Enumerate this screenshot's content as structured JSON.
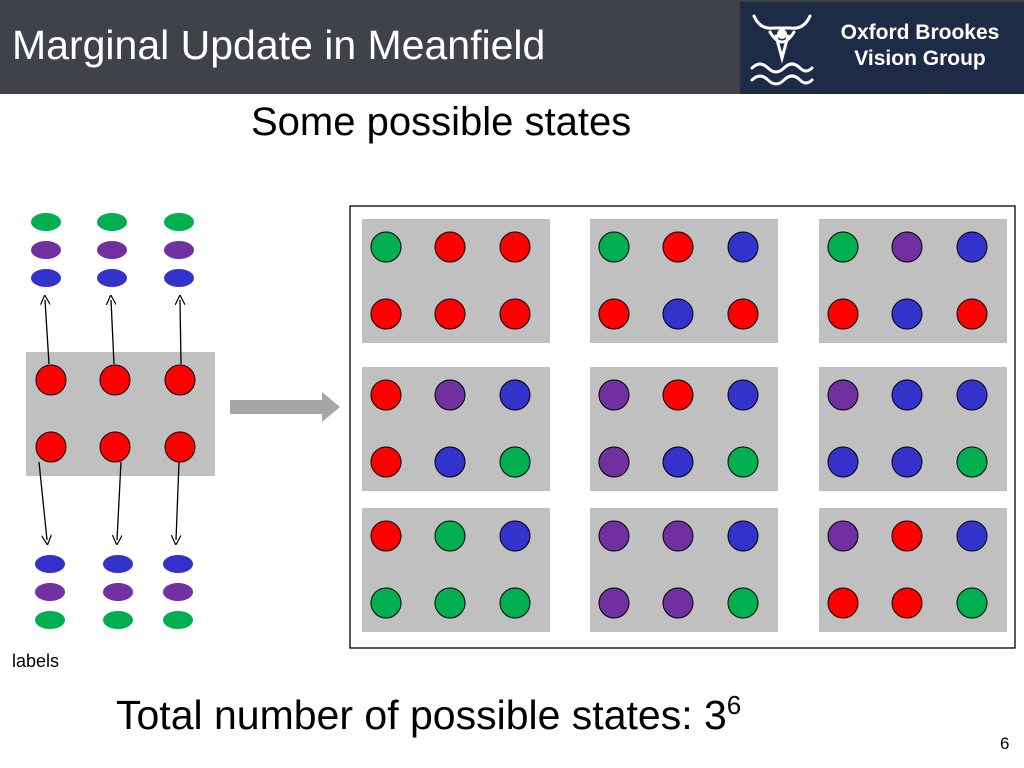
{
  "slide": {
    "title": "Marginal Update in Meanfield",
    "subtitle": "Some possible states",
    "total_text": "Total number of possible states: 3",
    "total_exponent": "6",
    "labels_caption": "labels",
    "page_number": "6"
  },
  "logo": {
    "line1": "Oxford Brookes",
    "line2": "Vision Group"
  },
  "colors": {
    "red": "#ff0000",
    "green": "#00b050",
    "purple": "#7030a0",
    "blue": "#3333cc",
    "panel_gray": "#c0c0c0",
    "arrow_gray": "#a6a6a6",
    "header_bg": "#404249",
    "logo_bg": "#1e2b46"
  },
  "label_set_top": [
    "green",
    "purple",
    "blue"
  ],
  "label_set_bottom": [
    "blue",
    "purple",
    "green"
  ],
  "current_state": {
    "top": [
      "red",
      "red",
      "red"
    ],
    "bottom": [
      "red",
      "red",
      "red"
    ]
  },
  "states": [
    {
      "top": [
        "green",
        "red",
        "red"
      ],
      "bottom": [
        "red",
        "red",
        "red"
      ]
    },
    {
      "top": [
        "green",
        "red",
        "blue"
      ],
      "bottom": [
        "red",
        "blue",
        "red"
      ]
    },
    {
      "top": [
        "green",
        "purple",
        "blue"
      ],
      "bottom": [
        "red",
        "blue",
        "red"
      ]
    },
    {
      "top": [
        "red",
        "purple",
        "blue"
      ],
      "bottom": [
        "red",
        "blue",
        "green"
      ]
    },
    {
      "top": [
        "purple",
        "red",
        "blue"
      ],
      "bottom": [
        "purple",
        "blue",
        "green"
      ]
    },
    {
      "top": [
        "purple",
        "blue",
        "blue"
      ],
      "bottom": [
        "blue",
        "blue",
        "green"
      ]
    },
    {
      "top": [
        "red",
        "green",
        "blue"
      ],
      "bottom": [
        "green",
        "green",
        "green"
      ]
    },
    {
      "top": [
        "purple",
        "purple",
        "blue"
      ],
      "bottom": [
        "purple",
        "purple",
        "green"
      ]
    },
    {
      "top": [
        "purple",
        "red",
        "blue"
      ],
      "bottom": [
        "red",
        "red",
        "green"
      ]
    }
  ]
}
